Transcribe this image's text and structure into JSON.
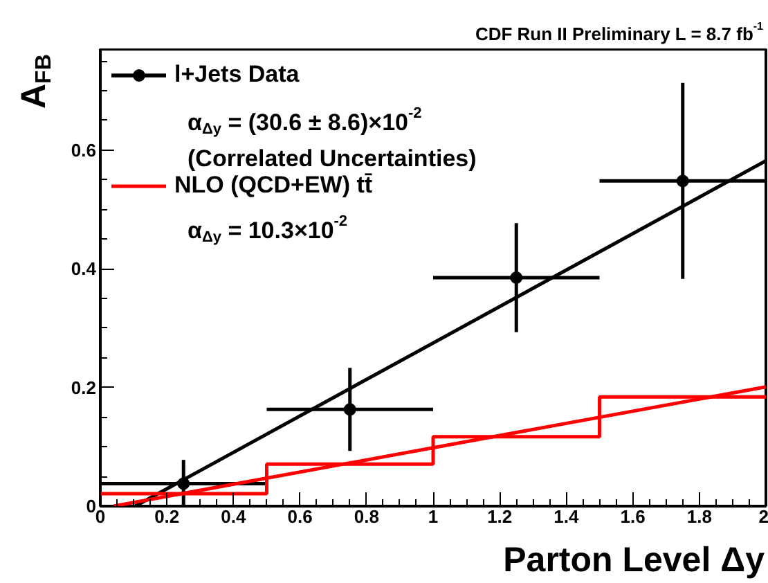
{
  "chart_data": {
    "type": "scatter",
    "title": "CDF Run II Preliminary L = 8.7 fb$^{-1}$",
    "xlabel": "Parton Level Δy",
    "ylabel": "A$_{FB}$",
    "xlim": [
      0,
      2
    ],
    "ylim": [
      0,
      0.77
    ],
    "xticks": [
      0,
      {
        "value": 0.05,
        "label": null
      },
      {
        "value": 0.1,
        "label": null
      },
      {
        "value": 0.15,
        "label": null
      },
      0.2,
      {
        "value": 0.25,
        "label": null
      },
      {
        "value": 0.3,
        "label": null
      },
      {
        "value": 0.35,
        "label": null
      },
      0.4,
      {
        "value": 0.45,
        "label": null
      },
      {
        "value": 0.5,
        "label": null
      },
      {
        "value": 0.55,
        "label": null
      },
      0.6,
      {
        "value": 0.65,
        "label": null
      },
      {
        "value": 0.7,
        "label": null
      },
      {
        "value": 0.75,
        "label": null
      },
      0.8,
      {
        "value": 0.85,
        "label": null
      },
      {
        "value": 0.9,
        "label": null
      },
      {
        "value": 0.95,
        "label": null
      },
      1,
      {
        "value": 1.05,
        "label": null
      },
      {
        "value": 1.1,
        "label": null
      },
      {
        "value": 1.15,
        "label": null
      },
      1.2,
      {
        "value": 1.25,
        "label": null
      },
      {
        "value": 1.3,
        "label": null
      },
      {
        "value": 1.35,
        "label": null
      },
      1.4,
      {
        "value": 1.45,
        "label": null
      },
      {
        "value": 1.5,
        "label": null
      },
      {
        "value": 1.55,
        "label": null
      },
      1.6,
      {
        "value": 1.65,
        "label": null
      },
      {
        "value": 1.7,
        "label": null
      },
      {
        "value": 1.75,
        "label": null
      },
      1.8,
      {
        "value": 1.85,
        "label": null
      },
      {
        "value": 1.9,
        "label": null
      },
      {
        "value": 1.95,
        "label": null
      },
      2
    ],
    "yticks": [
      0,
      {
        "value": 0.05,
        "label": null
      },
      {
        "value": 0.1,
        "label": null
      },
      {
        "value": 0.15,
        "label": null
      },
      0.2,
      {
        "value": 0.25,
        "label": null
      },
      {
        "value": 0.3,
        "label": null
      },
      {
        "value": 0.35,
        "label": null
      },
      0.4,
      {
        "value": 0.45,
        "label": null
      },
      {
        "value": 0.5,
        "label": null
      },
      {
        "value": 0.55,
        "label": null
      },
      0.6,
      {
        "value": 0.65,
        "label": null
      },
      {
        "value": 0.7,
        "label": null
      },
      {
        "value": 0.75,
        "label": null
      }
    ],
    "grid": false,
    "legend": "top left",
    "series": [
      {
        "name": "l+Jets Data",
        "marker": "circle",
        "color": "#000000",
        "x": [
          0.25,
          0.75,
          1.25,
          1.75
        ],
        "values": [
          0.038,
          0.163,
          0.385,
          0.548
        ],
        "errors": [
          0.04,
          0.07,
          0.092,
          0.165
        ],
        "xerrors": [
          0.25,
          0.25,
          0.25,
          0.25
        ]
      },
      {
        "type": "line",
        "color": "#000000",
        "x": [
          0.105,
          2
        ],
        "values": [
          0,
          0.582
        ]
      },
      {
        "type": "step",
        "name": "NLO (QCD+EW) tt̄",
        "color": "#ff0000",
        "x": [
          0,
          0.5,
          1,
          1.5,
          2
        ],
        "values": [
          0.021,
          0.071,
          0.117,
          0.184,
          0.184
        ]
      },
      {
        "type": "line",
        "color": "#ff0000",
        "x": [
          0.04,
          2
        ],
        "values": [
          0,
          0.201
        ]
      }
    ],
    "annotations": [
      "α$_{Δy}$ = (30.6 ± 8.6)×10$^{-2}$",
      "(Correlated Uncertainties)",
      "α$_{Δy}$ = 10.3×10$^{-2}$"
    ]
  }
}
